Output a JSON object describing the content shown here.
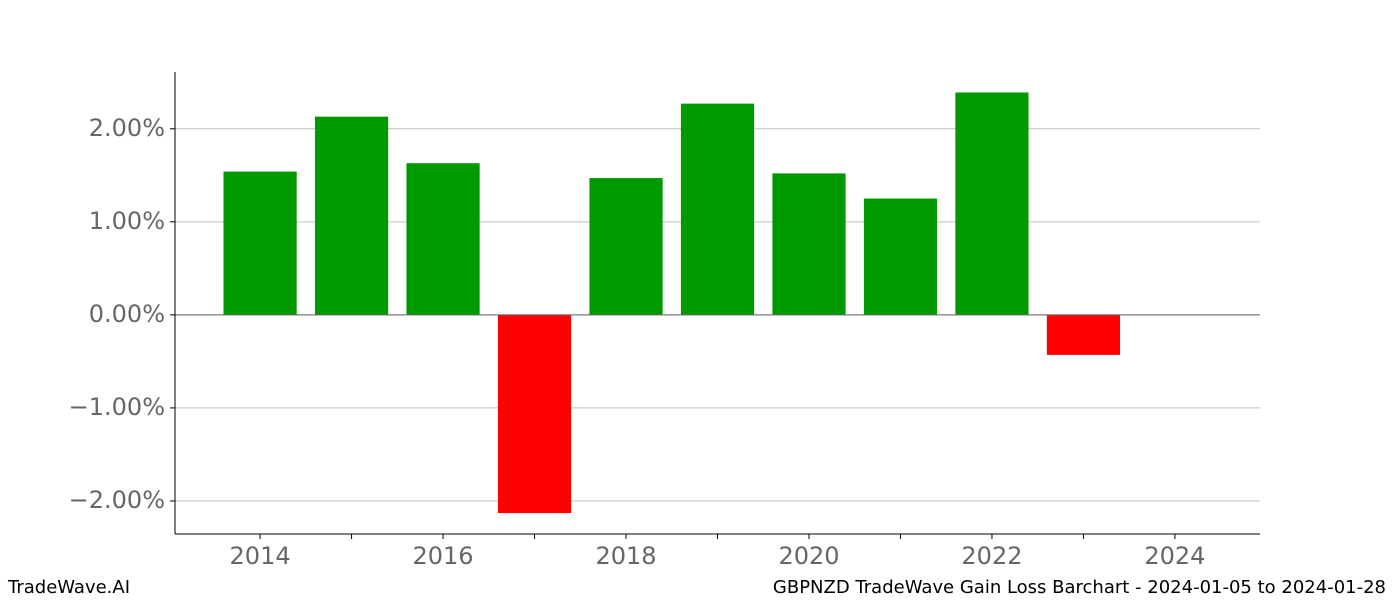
{
  "chart_data": {
    "type": "bar",
    "title": "GBPNZD TradeWave Gain Loss Barchart - 2024-01-05 to 2024-01-28",
    "source": "TradeWave.AI",
    "x": [
      2014,
      2015,
      2016,
      2017,
      2018,
      2019,
      2020,
      2021,
      2022,
      2023
    ],
    "values": [
      1.54,
      2.13,
      1.63,
      -2.13,
      1.47,
      2.27,
      1.52,
      1.25,
      2.39,
      -0.43
    ],
    "colors": [
      "#009900",
      "#009900",
      "#009900",
      "#ff0000",
      "#009900",
      "#009900",
      "#009900",
      "#009900",
      "#009900",
      "#ff0000"
    ],
    "xlim": [
      2013.07,
      2024.93
    ],
    "xticks": [
      2014,
      2016,
      2018,
      2020,
      2022,
      2024
    ],
    "xminorticks": [
      2015,
      2017,
      2019,
      2021,
      2023
    ],
    "ylim": [
      -2.355,
      2.61
    ],
    "yticks": [
      {
        "value": -2,
        "label": "−2.00%"
      },
      {
        "value": -1,
        "label": "−1.00%"
      },
      {
        "value": 0,
        "label": "0.00%"
      },
      {
        "value": 1,
        "label": "1.00%"
      },
      {
        "value": 2,
        "label": "2.00%"
      }
    ],
    "grid": true
  }
}
